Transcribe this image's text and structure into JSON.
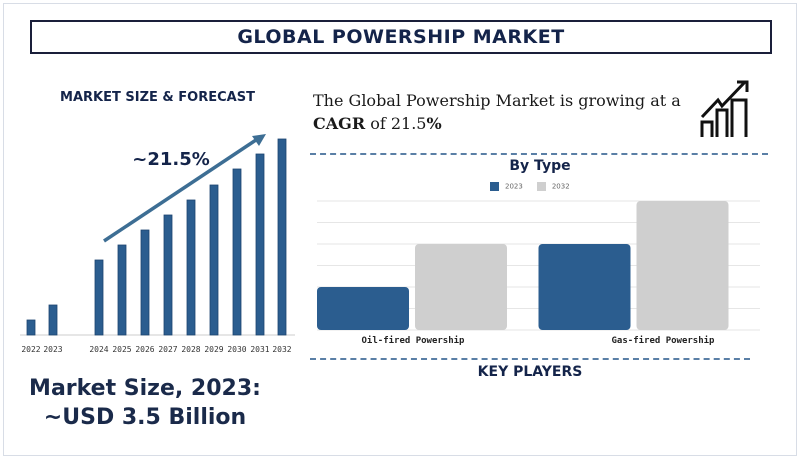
{
  "header": {
    "title": "GLOBAL POWERSHIP MARKET"
  },
  "headline": {
    "prefix": "The Global Powership Market is growing at a",
    "cagr_label": "CAGR",
    "of": "of",
    "rate": "21.5",
    "percent": "%"
  },
  "market_size": {
    "line1": "Market Size, 2023:",
    "line2": "~USD 3.5 Billion"
  },
  "key_players": {
    "label": "KEY PLAYERS"
  },
  "icons": {
    "growth": "bar-chart-growth-arrow-icon"
  },
  "colors": {
    "bar_blue": "#2b5d8f",
    "bar_gray": "#cfcfcf",
    "navy": "#14244a"
  },
  "chart_data": [
    {
      "type": "bar",
      "title": "MARKET SIZE & FORECAST",
      "categories": [
        "2022",
        "2023",
        "2024",
        "2025",
        "2026",
        "2027",
        "2028",
        "2029",
        "2030",
        "2031",
        "2032"
      ],
      "values": [
        15,
        30,
        75,
        90,
        105,
        120,
        135,
        150,
        166,
        181,
        196
      ],
      "annotation": "~21.5%",
      "xlabel": "",
      "ylabel": "",
      "grid": false
    },
    {
      "type": "bar",
      "title": "By Type",
      "categories": [
        "Oil-fired Powership",
        "Gas-fired Powership"
      ],
      "series": [
        {
          "name": "2023",
          "values": [
            2,
            4
          ],
          "color": "#2b5d8f"
        },
        {
          "name": "2032",
          "values": [
            4,
            6
          ],
          "color": "#cfcfcf"
        }
      ],
      "ylim": [
        0,
        6
      ],
      "grid": true,
      "legend": "top"
    }
  ]
}
